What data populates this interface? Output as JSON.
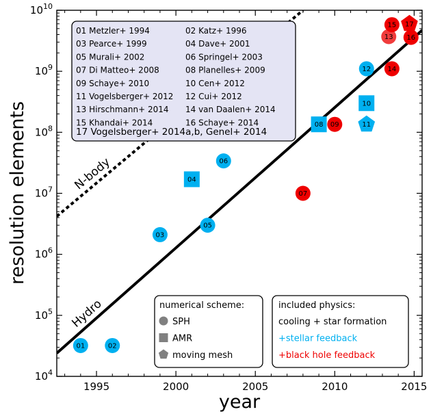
{
  "chart_data": {
    "type": "scatter",
    "xlabel": "year",
    "ylabel": "resolution elements",
    "xlim": [
      1992.5,
      2015.5
    ],
    "ylim": [
      10000,
      10000000000
    ],
    "yscale": "log",
    "x_ticks": [
      1995,
      2000,
      2005,
      2010,
      2015
    ],
    "y_ticks": [
      {
        "value": 10000,
        "base": "10",
        "exp": "4"
      },
      {
        "value": 100000,
        "base": "10",
        "exp": "5"
      },
      {
        "value": 1000000,
        "base": "10",
        "exp": "6"
      },
      {
        "value": 10000000,
        "base": "10",
        "exp": "7"
      },
      {
        "value": 100000000,
        "base": "10",
        "exp": "8"
      },
      {
        "value": 1000000000,
        "base": "10",
        "exp": "9"
      },
      {
        "value": 10000000000,
        "base": "10",
        "exp": "10"
      }
    ],
    "colors": {
      "stellar": "#00b0f0",
      "bh": "#ee0000",
      "bh_light": "#f03c3c",
      "legend_bg": "#e4e4f4",
      "gray": "#808080"
    },
    "lines": [
      {
        "label": "Hydro",
        "style": "solid",
        "x": [
          1992.5,
          2015.5
        ],
        "y": [
          24000,
          4700000000
        ]
      },
      {
        "label": "N-body",
        "style": "dotted",
        "x": [
          1992.5,
          2008
        ],
        "y": [
          4200000,
          10000000000
        ]
      }
    ],
    "points": [
      {
        "id": "01",
        "x": 1994,
        "y": 32000,
        "shape": "circle",
        "color": "stellar"
      },
      {
        "id": "02",
        "x": 1996,
        "y": 32000,
        "shape": "circle",
        "color": "stellar"
      },
      {
        "id": "03",
        "x": 1999,
        "y": 2100000,
        "shape": "circle",
        "color": "stellar"
      },
      {
        "id": "04",
        "x": 2001,
        "y": 17000000,
        "shape": "square",
        "color": "stellar"
      },
      {
        "id": "05",
        "x": 2002,
        "y": 3000000,
        "shape": "circle",
        "color": "stellar"
      },
      {
        "id": "06",
        "x": 2003,
        "y": 34000000,
        "shape": "circle",
        "color": "stellar"
      },
      {
        "id": "07",
        "x": 2008,
        "y": 10000000,
        "shape": "circle",
        "color": "bh"
      },
      {
        "id": "08",
        "x": 2009,
        "y": 135000000,
        "shape": "square",
        "color": "stellar"
      },
      {
        "id": "09",
        "x": 2010,
        "y": 135000000,
        "shape": "circle",
        "color": "bh"
      },
      {
        "id": "10",
        "x": 2012,
        "y": 300000000,
        "shape": "square",
        "color": "stellar"
      },
      {
        "id": "11",
        "x": 2012,
        "y": 135000000,
        "shape": "pentagon",
        "color": "stellar"
      },
      {
        "id": "12",
        "x": 2012,
        "y": 1100000000,
        "shape": "circle",
        "color": "stellar"
      },
      {
        "id": "13",
        "x": 2013.4,
        "y": 3700000000,
        "shape": "circle",
        "color": "bh_light"
      },
      {
        "id": "14",
        "x": 2013.6,
        "y": 1100000000,
        "shape": "circle",
        "color": "bh"
      },
      {
        "id": "15",
        "x": 2013.6,
        "y": 5800000000,
        "shape": "circle",
        "color": "bh"
      },
      {
        "id": "16",
        "x": 2014.8,
        "y": 3600000000,
        "shape": "circle",
        "color": "bh"
      },
      {
        "id": "17",
        "x": 2014.7,
        "y": 6000000000,
        "shape": "pentagon",
        "color": "bh"
      }
    ],
    "references": {
      "rows": [
        [
          "01 Metzler+ 1994",
          "02 Katz+ 1996"
        ],
        [
          "03 Pearce+ 1999",
          "04 Dave+ 2001"
        ],
        [
          "05 Murali+ 2002",
          "06 Springel+ 2003"
        ],
        [
          "07 Di Matteo+ 2008",
          "08 Planelles+ 2009"
        ],
        [
          "09 Schaye+ 2010",
          "10 Cen+ 2012"
        ],
        [
          "11 Vogelsberger+ 2012",
          "12 Cui+ 2012"
        ],
        [
          "13 Hirschmann+ 2014",
          "14 van Daalen+ 2014"
        ],
        [
          "15 Khandai+ 2014",
          "16 Schaye+ 2014"
        ]
      ],
      "last": "17 Vogelsberger+ 2014a,b, Genel+ 2014"
    },
    "scheme_legend": {
      "title": "numerical scheme:",
      "items": [
        {
          "shape": "circle",
          "label": "SPH"
        },
        {
          "shape": "square",
          "label": "AMR"
        },
        {
          "shape": "pentagon",
          "label": "moving mesh"
        }
      ]
    },
    "physics_legend": {
      "title": "included physics:",
      "items": [
        {
          "label": "cooling + star formation",
          "color": "#000000"
        },
        {
          "label": "+stellar feedback",
          "color": "#00b0f0"
        },
        {
          "label": "+black hole feedback",
          "color": "#ee0000"
        }
      ]
    }
  }
}
